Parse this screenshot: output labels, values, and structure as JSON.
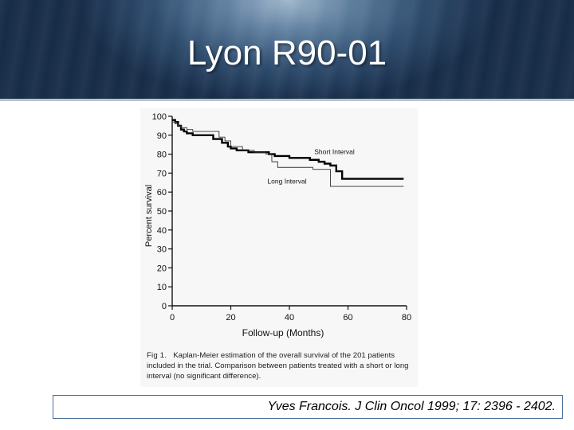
{
  "slide": {
    "title": "Lyon R90-01",
    "citation": "Yves Francois. J Clin Oncol 1999; 17: 2396 - 2402."
  },
  "figure": {
    "caption_label": "Fig 1.",
    "caption_text": "Kaplan-Meier estimation of the overall survival of the 201 patients included in the trial. Comparison between patients treated with a short or long interval (no significant difference)."
  },
  "chart_data": {
    "type": "line",
    "xlabel": "Follow-up (Months)",
    "ylabel": "Percent survival",
    "xlim": [
      0,
      80
    ],
    "ylim": [
      0,
      100
    ],
    "xticks": [
      0,
      20,
      40,
      60,
      80
    ],
    "yticks": [
      0,
      10,
      20,
      30,
      40,
      50,
      60,
      70,
      80,
      90,
      100
    ],
    "grid": false,
    "step": true,
    "series": [
      {
        "name": "Short Interval",
        "style": "thick",
        "x": [
          0,
          1,
          2,
          3,
          4,
          5,
          7,
          14,
          17,
          19,
          20,
          22,
          26,
          33,
          35,
          40,
          47,
          50,
          52,
          54,
          56,
          58,
          79
        ],
        "y": [
          98,
          97,
          95,
          93,
          92,
          91,
          90,
          88,
          86,
          84,
          83,
          82,
          81,
          80,
          79,
          78,
          77,
          76,
          75,
          74,
          71,
          67,
          67
        ]
      },
      {
        "name": "Long Interval",
        "style": "thin",
        "x": [
          0,
          1,
          2,
          3,
          5,
          7,
          12,
          16,
          18,
          20,
          24,
          28,
          32,
          34,
          36,
          46,
          48,
          52,
          54,
          79
        ],
        "y": [
          97,
          96,
          95,
          94,
          93,
          92,
          92,
          89,
          87,
          84,
          82,
          81,
          80,
          76,
          73,
          73,
          72,
          72,
          63,
          63
        ]
      }
    ]
  }
}
